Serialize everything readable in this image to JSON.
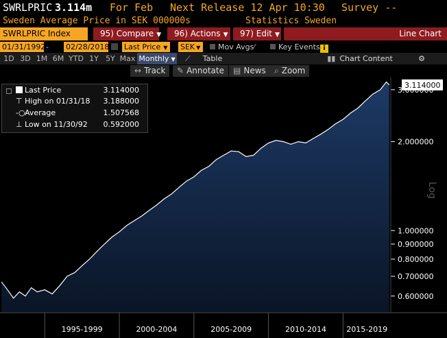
{
  "header": {
    "ticker": "SWRLPRIC",
    "last_value": "3.114m",
    "for_period": "For Feb",
    "next_release": "Next Release 12 Apr 10:30",
    "survey": "Survey --"
  },
  "description": {
    "name": "Sweden Average Price in SEK 000000s",
    "source": "Statistics Sweden"
  },
  "toolbar": {
    "index_label": "SWRLPRIC Index",
    "compare_label": "95) Compare",
    "actions_label": "96) Actions",
    "edit_label": "97) Edit",
    "chart_label": "Line Chart"
  },
  "range": {
    "start_date": "01/31/1992",
    "end_date": "02/28/2018",
    "field": "Last Price",
    "currency": "SEK",
    "mov_avgs": "Mov Avgs",
    "key_events": "Key Events"
  },
  "periods": {
    "items": [
      "1D",
      "3D",
      "1M",
      "6M",
      "YTD",
      "1Y",
      "5Y",
      "Max"
    ],
    "frequency": "Monthly",
    "table_label": "Table",
    "chart_content": "Chart Content"
  },
  "tools": {
    "track": "Track",
    "annotate": "Annotate",
    "news": "News",
    "zoom": "Zoom"
  },
  "legend": {
    "last_price_label": "Last Price",
    "last_price_value": "3.114000",
    "high_label": "High on 01/31/18",
    "high_value": "3.188000",
    "average_label": "Average",
    "average_value": "1.507568",
    "low_label": "Low on 11/30/92",
    "low_value": "0.592000"
  },
  "colors": {
    "accent_orange": "#f6a623",
    "toolbar_red": "#8e1b1f",
    "line": "#ffffff",
    "area_top": "#1d3a66",
    "area_bottom": "#0a1526"
  },
  "chart_data": {
    "type": "area",
    "scale": "log",
    "ylabel": "Log",
    "ylim": [
      0.53,
      3.3
    ],
    "y_ticks": [
      "0.600000",
      "0.700000",
      "0.800000",
      "0.900000",
      "1.000000",
      "2.000000",
      "3.000000"
    ],
    "y_tick_values": [
      0.6,
      0.7,
      0.8,
      0.9,
      1.0,
      2.0,
      3.0
    ],
    "x_labels": [
      "1995-1999",
      "2000-2004",
      "2005-2009",
      "2010-2014",
      "2015-2019"
    ],
    "last_value_label": "3.114000",
    "series": [
      {
        "name": "Last Price",
        "x": [
          1992.1,
          1992.5,
          1992.9,
          1993.3,
          1993.7,
          1994.1,
          1994.5,
          1995.0,
          1995.5,
          1996.0,
          1996.5,
          1997.0,
          1997.5,
          1998.0,
          1998.5,
          1999.0,
          1999.5,
          2000.0,
          2000.5,
          2001.0,
          2001.5,
          2002.0,
          2002.5,
          2003.0,
          2003.5,
          2004.0,
          2004.5,
          2005.0,
          2005.5,
          2006.0,
          2006.5,
          2007.0,
          2007.5,
          2008.0,
          2008.5,
          2009.0,
          2009.5,
          2010.0,
          2010.5,
          2011.0,
          2011.5,
          2012.0,
          2012.5,
          2013.0,
          2013.5,
          2014.0,
          2014.5,
          2015.0,
          2015.5,
          2016.0,
          2016.5,
          2017.0,
          2017.5,
          2017.9,
          2018.1
        ],
        "values": [
          0.67,
          0.63,
          0.59,
          0.62,
          0.6,
          0.64,
          0.62,
          0.63,
          0.61,
          0.65,
          0.7,
          0.72,
          0.76,
          0.8,
          0.85,
          0.9,
          0.95,
          0.99,
          1.04,
          1.08,
          1.12,
          1.17,
          1.22,
          1.28,
          1.33,
          1.4,
          1.47,
          1.52,
          1.6,
          1.65,
          1.74,
          1.8,
          1.86,
          1.85,
          1.78,
          1.8,
          1.9,
          1.98,
          2.02,
          2.0,
          1.96,
          2.0,
          1.98,
          2.05,
          2.12,
          2.2,
          2.3,
          2.38,
          2.5,
          2.6,
          2.75,
          2.9,
          3.0,
          3.188,
          3.114
        ]
      }
    ]
  }
}
